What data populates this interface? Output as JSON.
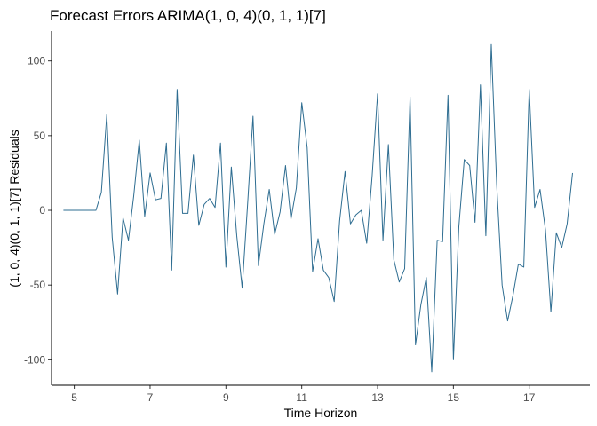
{
  "chart_data": {
    "type": "line",
    "title": "Forecast Errors ARIMA(1, 0, 4)(0, 1, 1)[7]",
    "xlabel": "Time Horizon",
    "ylabel": "(1, 0, 4)(0, 1, 1)[7] Residuals",
    "xlim": [
      4.4,
      18.6
    ],
    "ylim": [
      -117,
      120
    ],
    "x_ticks": [
      5,
      7,
      9,
      11,
      13,
      15,
      17
    ],
    "y_ticks": [
      -100,
      -50,
      0,
      50,
      100
    ],
    "grid": false,
    "legend": "none",
    "color": "#2e6d91",
    "series": [
      {
        "x": [
          4.714,
          4.857,
          5.0,
          5.143,
          5.286,
          5.429,
          5.571,
          5.714,
          5.857,
          6.0,
          6.143,
          6.286,
          6.429,
          6.571,
          6.714,
          6.857,
          7.0,
          7.143,
          7.286,
          7.429,
          7.571,
          7.714,
          7.857,
          8.0,
          8.143,
          8.286,
          8.429,
          8.571,
          8.714,
          8.857,
          9.0,
          9.143,
          9.286,
          9.429,
          9.571,
          9.714,
          9.857,
          10.0,
          10.143,
          10.286,
          10.429,
          10.571,
          10.714,
          10.857,
          11.0,
          11.143,
          11.286,
          11.429,
          11.571,
          11.714,
          11.857,
          12.0,
          12.143,
          12.286,
          12.429,
          12.571,
          12.714,
          12.857,
          13.0,
          13.143,
          13.286,
          13.429,
          13.571,
          13.714,
          13.857,
          14.0,
          14.143,
          14.286,
          14.429,
          14.571,
          14.714,
          14.857,
          15.0,
          15.143,
          15.286,
          15.429,
          15.571,
          15.714,
          15.857,
          16.0,
          16.143,
          16.286,
          16.429,
          16.571,
          16.714,
          16.857,
          17.0,
          17.143,
          17.286,
          17.429,
          17.571,
          17.714,
          17.857,
          18.0,
          18.143
        ],
        "y": [
          0,
          0,
          0,
          0,
          0,
          0,
          0,
          12,
          64,
          -18,
          -56,
          -5,
          -20,
          10,
          47,
          -4,
          25,
          7,
          8,
          45,
          -40,
          81,
          -2,
          -2,
          37,
          -10,
          4,
          8,
          2,
          45,
          -38,
          29,
          -17,
          -52,
          4,
          63,
          -37,
          -9,
          14,
          -16,
          -1,
          30,
          -6,
          15,
          72,
          42,
          -41,
          -19,
          -40,
          -45,
          -61,
          -7,
          26,
          -9,
          -3,
          0,
          -22,
          23,
          78,
          -20,
          44,
          -33,
          -48,
          -39,
          76,
          -90,
          -63,
          -45,
          -108,
          -20,
          -21,
          77,
          -100,
          -11,
          34,
          30,
          -8,
          84,
          -17,
          111,
          17,
          -50,
          -74,
          -57,
          -36,
          -38,
          81,
          2,
          14,
          -13,
          -68,
          -15,
          -25,
          -9,
          25
        ]
      }
    ]
  }
}
